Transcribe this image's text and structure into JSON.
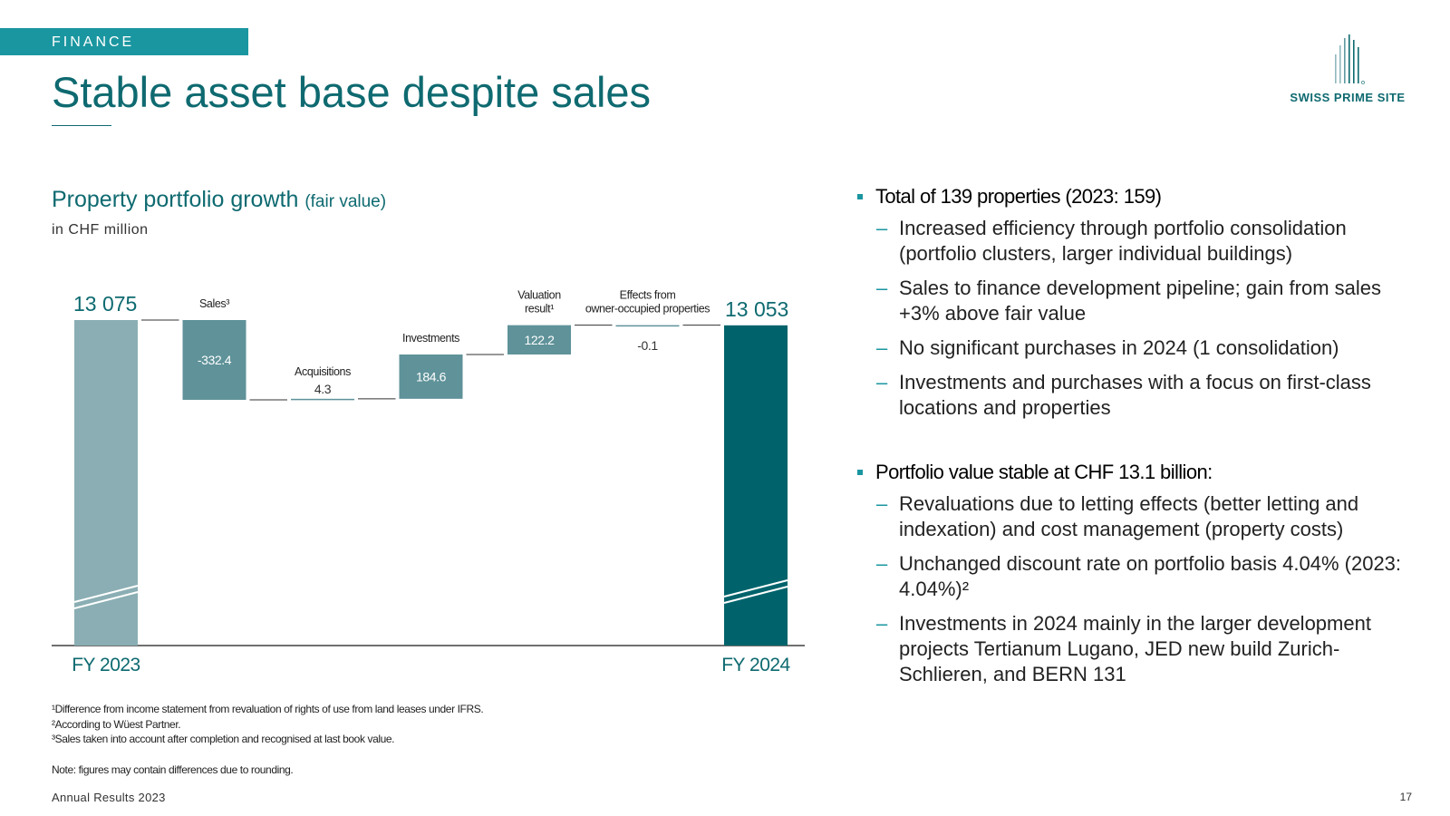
{
  "section": "FINANCE",
  "title": "Stable asset base despite sales",
  "logo": {
    "text": "SWISS PRIME SITE",
    "icon": "bars-logo-icon"
  },
  "chart_heading": {
    "main": "Property portfolio growth",
    "sub": "(fair value)"
  },
  "chart_unit": "in CHF million",
  "chart_data": {
    "type": "waterfall",
    "unit": "CHF million",
    "axis_break": true,
    "steps": [
      {
        "label": "FY 2023",
        "value": 13075,
        "kind": "total",
        "value_text": "13 075"
      },
      {
        "label": "Sales³",
        "value": -332.4,
        "kind": "delta",
        "value_text": "-332.4"
      },
      {
        "label": "Acquisitions",
        "value": 4.3,
        "kind": "delta",
        "value_text": "4.3"
      },
      {
        "label": "Investments",
        "value": 184.6,
        "kind": "delta",
        "value_text": "184.6"
      },
      {
        "label": "Valuation result¹",
        "value": 122.2,
        "kind": "delta",
        "value_text": "122.2"
      },
      {
        "label": "Effects from owner-occupied properties",
        "value": -0.1,
        "kind": "delta",
        "value_text": "-0.1"
      },
      {
        "label": "FY 2024",
        "value": 13053,
        "kind": "total",
        "value_text": "13 053"
      }
    ],
    "colors": {
      "total_start": "#8aaeb3",
      "delta": "#5f9299",
      "total_end": "#00636b",
      "value_label": "#0e6a70"
    }
  },
  "bullets": [
    {
      "title": "Total of 139 properties (2023: 159)",
      "items": [
        "Increased efficiency through portfolio consolidation (portfolio clusters, larger individual buildings)",
        "Sales to finance development pipeline; gain from sales +3% above fair value",
        "No significant purchases in 2024 (1 consolidation)",
        "Investments and purchases with a focus on first-class locations and properties"
      ]
    },
    {
      "title": "Portfolio value stable at CHF 13.1 billion:",
      "items": [
        "Revaluations due to letting effects (better letting and indexation) and cost management (property costs)",
        "Unchanged discount rate on portfolio basis 4.04% (2023: 4.04%)²",
        "Investments in 2024 mainly in the larger development projects Tertianum Lugano, JED new build Zurich-Schlieren, and BERN 131"
      ]
    }
  ],
  "footnotes": [
    "¹Difference from income statement from revaluation of rights of use from land leases under IFRS.",
    "²According to Wüest Partner.",
    "³Sales taken into account after completion and recognised at last book value."
  ],
  "note": "Note: figures may contain differences due to rounding.",
  "footer": {
    "left": "Annual Results 2023",
    "page": "17"
  }
}
